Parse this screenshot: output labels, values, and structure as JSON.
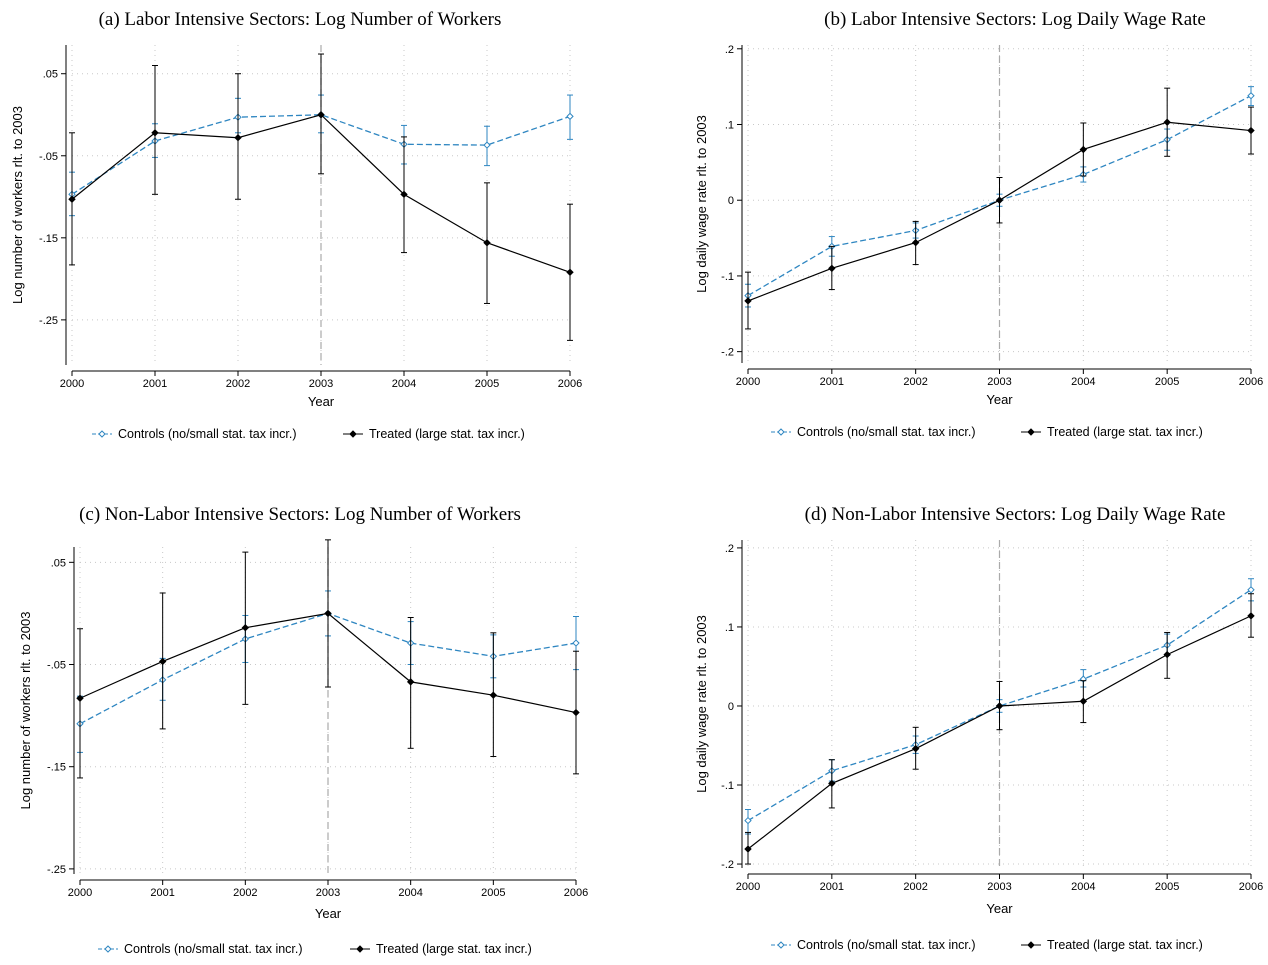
{
  "legend": {
    "controls": "Controls (no/small stat. tax incr.)",
    "treated": "Treated (large stat. tax incr.)"
  },
  "colors": {
    "controls": "#2e86c1",
    "treated": "#000000",
    "grid": "#c8c8c8",
    "refline": "#aaaaaa"
  },
  "chart_data": [
    {
      "type": "line",
      "title": "(a) Labor Intensive Sectors: Log Number of Workers",
      "xlabel": "Year",
      "ylabel": "Log number of workers rlt. to 2003",
      "x": [
        2000,
        2001,
        2002,
        2003,
        2004,
        2005,
        2006
      ],
      "ylim": [
        -0.305,
        0.085
      ],
      "yticks": [
        -0.25,
        -0.15,
        -0.05,
        0.05
      ],
      "ytick_labels": [
        "-.25",
        "-.15",
        "-.05",
        ".05"
      ],
      "ref_x": 2003,
      "series": [
        {
          "name": "Controls (no/small stat. tax incr.)",
          "values": [
            -0.097,
            -0.032,
            -0.003,
            0,
            -0.036,
            -0.037,
            -0.002
          ],
          "ci_low": [
            -0.123,
            -0.052,
            -0.022,
            -0.022,
            -0.06,
            -0.062,
            -0.03
          ],
          "ci_high": [
            -0.07,
            -0.011,
            0.02,
            0.024,
            -0.013,
            -0.014,
            0.024
          ]
        },
        {
          "name": "Treated (large stat. tax incr.)",
          "values": [
            -0.103,
            -0.022,
            -0.028,
            0,
            -0.097,
            -0.156,
            -0.192
          ],
          "ci_low": [
            -0.183,
            -0.097,
            -0.103,
            -0.072,
            -0.168,
            -0.23,
            -0.275
          ],
          "ci_high": [
            -0.022,
            0.06,
            0.05,
            0.074,
            -0.027,
            -0.083,
            -0.109
          ]
        }
      ]
    },
    {
      "type": "line",
      "title": "(b) Labor Intensive Sectors: Log Daily Wage Rate",
      "xlabel": "Year",
      "ylabel": "Log daily wage rate rlt. to 2003",
      "x": [
        2000,
        2001,
        2002,
        2003,
        2004,
        2005,
        2006
      ],
      "ylim": [
        -0.215,
        0.205
      ],
      "yticks": [
        -0.2,
        -0.1,
        0,
        0.1,
        0.2
      ],
      "ytick_labels": [
        "-.2",
        "-.1",
        "0",
        ".1",
        ".2"
      ],
      "ref_x": 2003,
      "series": [
        {
          "name": "Controls (no/small stat. tax incr.)",
          "values": [
            -0.126,
            -0.061,
            -0.04,
            0,
            0.034,
            0.08,
            0.138
          ],
          "ci_low": [
            -0.141,
            -0.074,
            -0.05,
            -0.008,
            0.024,
            0.066,
            0.125
          ],
          "ci_high": [
            -0.111,
            -0.048,
            -0.03,
            0.008,
            0.044,
            0.094,
            0.15
          ]
        },
        {
          "name": "Treated (large stat. tax incr.)",
          "values": [
            -0.133,
            -0.09,
            -0.056,
            0,
            0.067,
            0.103,
            0.092
          ],
          "ci_low": [
            -0.17,
            -0.118,
            -0.085,
            -0.03,
            0.032,
            0.058,
            0.061
          ],
          "ci_high": [
            -0.095,
            -0.061,
            -0.028,
            0.03,
            0.102,
            0.148,
            0.123
          ]
        }
      ]
    },
    {
      "type": "line",
      "title": "(c) Non-Labor Intensive Sectors: Log Number of Workers",
      "xlabel": "Year",
      "ylabel": "Log number of workers rlt. to 2003",
      "x": [
        2000,
        2001,
        2002,
        2003,
        2004,
        2005,
        2006
      ],
      "ylim": [
        -0.255,
        0.065
      ],
      "yticks": [
        -0.25,
        -0.15,
        -0.05,
        0.05
      ],
      "ytick_labels": [
        "-.25",
        "-.15",
        "-.05",
        ".05"
      ],
      "ref_x": 2003,
      "series": [
        {
          "name": "Controls (no/small stat. tax incr.)",
          "values": [
            -0.108,
            -0.065,
            -0.025,
            0,
            -0.029,
            -0.042,
            -0.029
          ],
          "ci_low": [
            -0.136,
            -0.085,
            -0.048,
            -0.022,
            -0.05,
            -0.063,
            -0.055
          ],
          "ci_high": [
            -0.081,
            -0.044,
            -0.002,
            0.022,
            -0.008,
            -0.021,
            -0.003
          ]
        },
        {
          "name": "Treated (large stat. tax incr.)",
          "values": [
            -0.083,
            -0.047,
            -0.014,
            0,
            -0.067,
            -0.08,
            -0.097
          ],
          "ci_low": [
            -0.161,
            -0.113,
            -0.089,
            -0.072,
            -0.132,
            -0.14,
            -0.157
          ],
          "ci_high": [
            -0.015,
            0.02,
            0.06,
            0.072,
            -0.004,
            -0.019,
            -0.037
          ]
        }
      ]
    },
    {
      "type": "line",
      "title": "(d) Non-Labor Intensive Sectors: Log Daily Wage Rate",
      "xlabel": "Year",
      "ylabel": "Log daily wage rate rlt. to 2003",
      "x": [
        2000,
        2001,
        2002,
        2003,
        2004,
        2005,
        2006
      ],
      "ylim": [
        -0.205,
        0.21
      ],
      "yticks": [
        -0.2,
        -0.1,
        0,
        0.1,
        0.2
      ],
      "ytick_labels": [
        "-.2",
        "-.1",
        "0",
        ".1",
        ".2"
      ],
      "ref_x": 2003,
      "series": [
        {
          "name": "Controls (no/small stat. tax incr.)",
          "values": [
            -0.145,
            -0.082,
            -0.049,
            0,
            0.034,
            0.077,
            0.147
          ],
          "ci_low": [
            -0.162,
            -0.095,
            -0.06,
            -0.008,
            0.024,
            0.064,
            0.133
          ],
          "ci_high": [
            -0.131,
            -0.068,
            -0.038,
            0.008,
            0.046,
            0.091,
            0.161
          ]
        },
        {
          "name": "Treated (large stat. tax incr.)",
          "values": [
            -0.181,
            -0.098,
            -0.054,
            0,
            0.006,
            0.065,
            0.114
          ],
          "ci_low": [
            -0.2,
            -0.129,
            -0.08,
            -0.03,
            -0.021,
            0.035,
            0.087
          ],
          "ci_high": [
            -0.16,
            -0.068,
            -0.027,
            0.031,
            0.032,
            0.093,
            0.142
          ]
        }
      ]
    }
  ]
}
